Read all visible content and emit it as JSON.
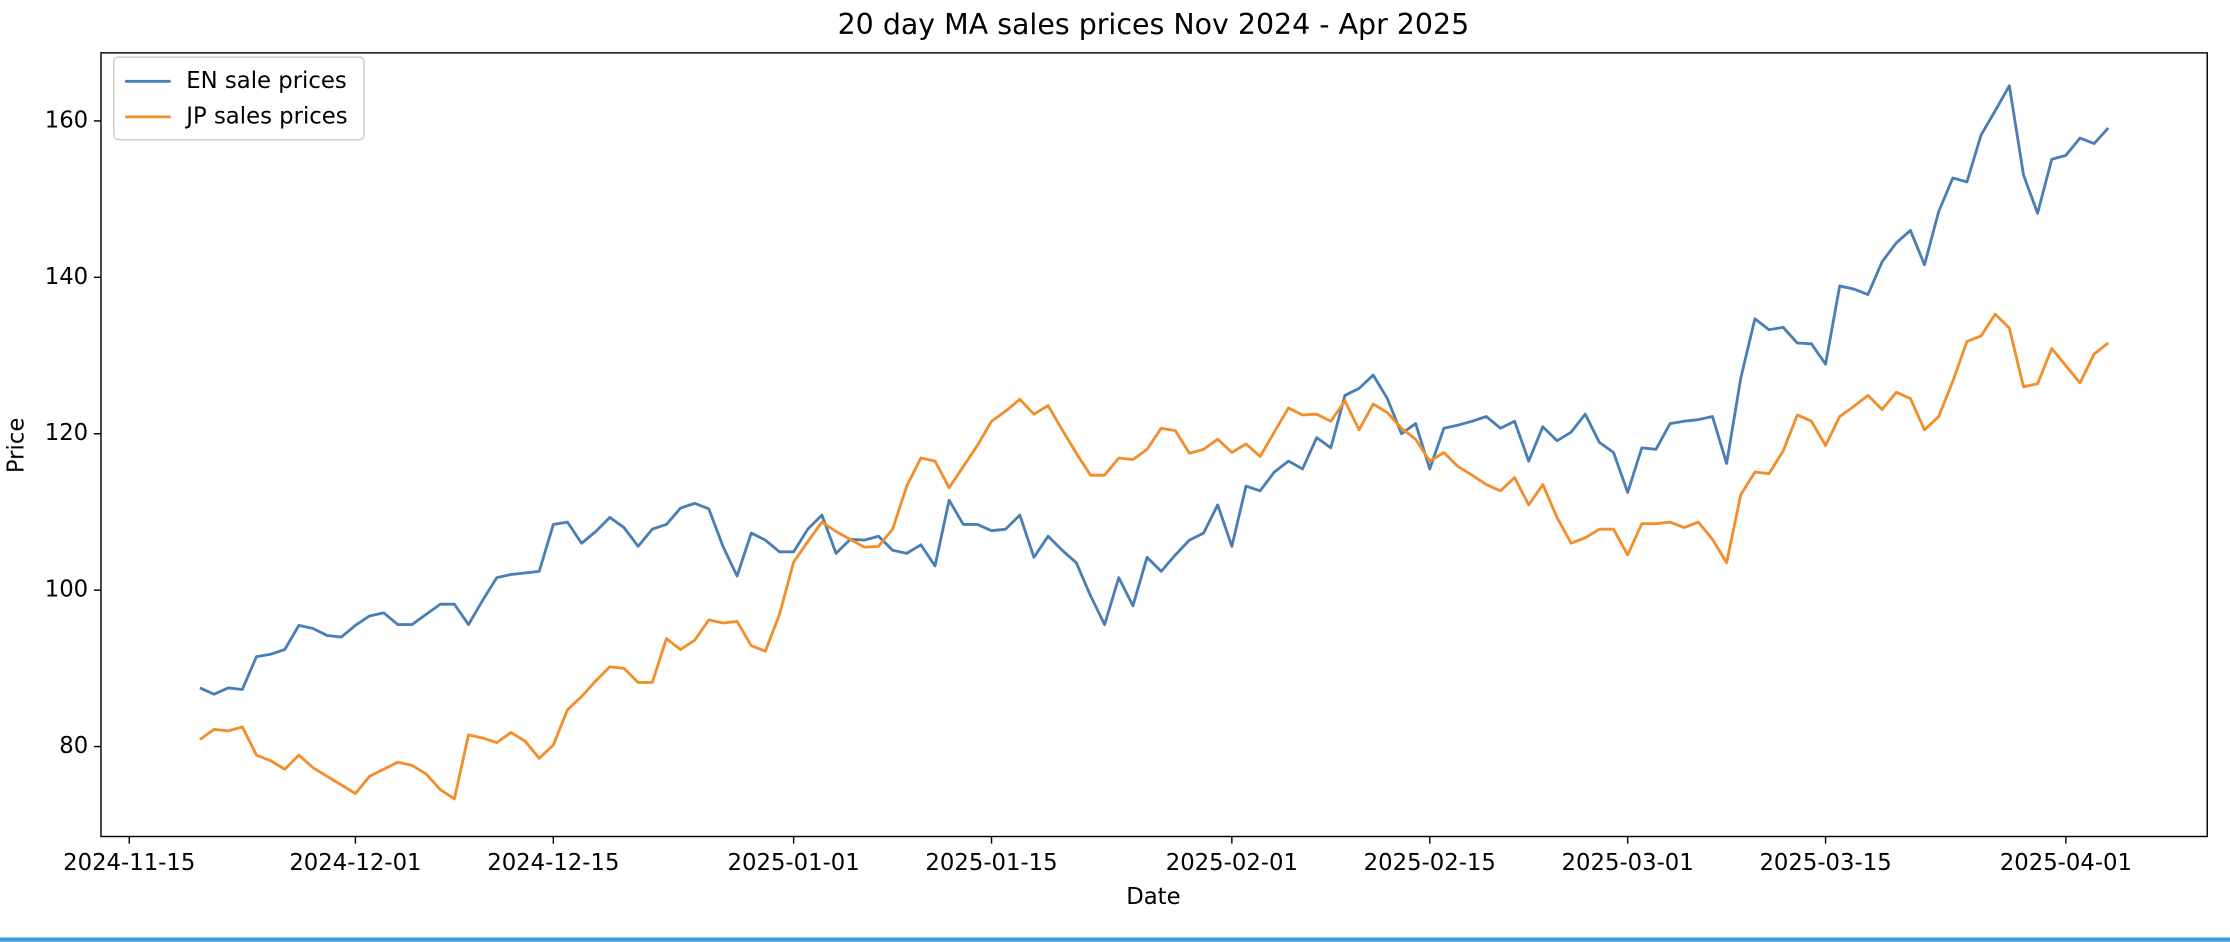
{
  "chart_data": {
    "type": "line",
    "title": "20 day MA sales prices Nov 2024 - Apr 2025",
    "xlabel": "Date",
    "ylabel": "Price",
    "x": [
      "2024-11-20",
      "2024-11-21",
      "2024-11-22",
      "2024-11-23",
      "2024-11-24",
      "2024-11-25",
      "2024-11-26",
      "2024-11-27",
      "2024-11-28",
      "2024-11-29",
      "2024-11-30",
      "2024-12-01",
      "2024-12-02",
      "2024-12-03",
      "2024-12-04",
      "2024-12-05",
      "2024-12-06",
      "2024-12-07",
      "2024-12-08",
      "2024-12-09",
      "2024-12-10",
      "2024-12-11",
      "2024-12-12",
      "2024-12-13",
      "2024-12-14",
      "2024-12-15",
      "2024-12-16",
      "2024-12-17",
      "2024-12-18",
      "2024-12-19",
      "2024-12-20",
      "2024-12-21",
      "2024-12-22",
      "2024-12-23",
      "2024-12-24",
      "2024-12-25",
      "2024-12-26",
      "2024-12-27",
      "2024-12-28",
      "2024-12-29",
      "2024-12-30",
      "2024-12-31",
      "2025-01-01",
      "2025-01-02",
      "2025-01-03",
      "2025-01-04",
      "2025-01-05",
      "2025-01-06",
      "2025-01-07",
      "2025-01-08",
      "2025-01-09",
      "2025-01-10",
      "2025-01-11",
      "2025-01-12",
      "2025-01-13",
      "2025-01-14",
      "2025-01-15",
      "2025-01-16",
      "2025-01-17",
      "2025-01-18",
      "2025-01-19",
      "2025-01-20",
      "2025-01-21",
      "2025-01-22",
      "2025-01-23",
      "2025-01-24",
      "2025-01-25",
      "2025-01-26",
      "2025-01-27",
      "2025-01-28",
      "2025-01-29",
      "2025-01-30",
      "2025-01-31",
      "2025-02-01",
      "2025-02-02",
      "2025-02-03",
      "2025-02-04",
      "2025-02-05",
      "2025-02-06",
      "2025-02-07",
      "2025-02-08",
      "2025-02-09",
      "2025-02-10",
      "2025-02-11",
      "2025-02-12",
      "2025-02-13",
      "2025-02-14",
      "2025-02-15",
      "2025-02-16",
      "2025-02-17",
      "2025-02-18",
      "2025-02-19",
      "2025-02-20",
      "2025-02-21",
      "2025-02-22",
      "2025-02-23",
      "2025-02-24",
      "2025-02-25",
      "2025-02-26",
      "2025-02-27",
      "2025-02-28",
      "2025-03-01",
      "2025-03-02",
      "2025-03-03",
      "2025-03-04",
      "2025-03-05",
      "2025-03-06",
      "2025-03-07",
      "2025-03-08",
      "2025-03-09",
      "2025-03-10",
      "2025-03-11",
      "2025-03-12",
      "2025-03-13",
      "2025-03-14",
      "2025-03-15",
      "2025-03-16",
      "2025-03-17",
      "2025-03-18",
      "2025-03-19",
      "2025-03-20",
      "2025-03-21",
      "2025-03-22",
      "2025-03-23",
      "2025-03-24",
      "2025-03-25",
      "2025-03-26",
      "2025-03-27",
      "2025-03-28",
      "2025-03-29",
      "2025-03-30",
      "2025-03-31",
      "2025-04-01",
      "2025-04-02",
      "2025-04-03",
      "2025-04-04"
    ],
    "series": [
      {
        "name": "EN sale prices",
        "color": "#4a7fb5",
        "values": [
          87.5,
          86.7,
          87.5,
          87.3,
          91.5,
          91.8,
          92.4,
          95.5,
          95.1,
          94.2,
          94.0,
          95.5,
          96.7,
          97.1,
          95.6,
          95.6,
          96.9,
          98.2,
          98.2,
          95.6,
          98.7,
          101.6,
          102.0,
          102.2,
          102.4,
          108.4,
          108.7,
          106.0,
          107.5,
          109.3,
          108.0,
          105.6,
          107.8,
          108.4,
          110.5,
          111.1,
          110.4,
          105.6,
          101.8,
          107.3,
          106.4,
          104.9,
          104.9,
          107.8,
          109.6,
          104.7,
          106.5,
          106.4,
          106.9,
          105.1,
          104.7,
          105.8,
          103.1,
          111.5,
          108.4,
          108.4,
          107.6,
          107.8,
          109.6,
          104.2,
          106.9,
          105.1,
          103.5,
          99.3,
          95.6,
          101.6,
          98.0,
          104.2,
          102.4,
          104.5,
          106.4,
          107.3,
          110.9,
          105.6,
          113.3,
          112.7,
          115.1,
          116.5,
          115.5,
          119.5,
          118.2,
          124.9,
          125.8,
          127.5,
          124.5,
          120.0,
          121.3,
          115.5,
          120.7,
          121.1,
          121.6,
          122.2,
          120.7,
          121.6,
          116.5,
          120.9,
          119.1,
          120.2,
          122.5,
          118.9,
          117.6,
          112.5,
          118.2,
          118.0,
          121.3,
          121.6,
          121.8,
          122.2,
          116.2,
          127.1,
          134.7,
          133.3,
          133.6,
          131.6,
          131.5,
          128.9,
          138.9,
          138.5,
          137.8,
          142.0,
          144.4,
          146.0,
          141.6,
          148.4,
          152.7,
          152.2,
          158.2,
          161.3,
          164.5,
          153.1,
          148.2,
          155.1,
          155.6,
          157.8,
          157.1,
          159.1
        ]
      },
      {
        "name": "JP sales prices",
        "color": "#f28e2b",
        "values": [
          80.9,
          82.2,
          82.0,
          82.5,
          78.9,
          78.2,
          77.1,
          78.9,
          77.3,
          76.2,
          75.1,
          74.0,
          76.2,
          77.1,
          78.0,
          77.6,
          76.5,
          74.5,
          73.3,
          81.5,
          81.1,
          80.5,
          81.8,
          80.7,
          78.5,
          80.2,
          84.7,
          86.4,
          88.4,
          90.2,
          90.0,
          88.2,
          88.2,
          93.8,
          92.4,
          93.6,
          96.2,
          95.8,
          96.0,
          92.9,
          92.2,
          96.9,
          103.6,
          106.2,
          108.7,
          107.5,
          106.5,
          105.5,
          105.6,
          107.8,
          113.3,
          116.9,
          116.5,
          113.1,
          115.8,
          118.5,
          121.6,
          122.9,
          124.4,
          122.5,
          123.6,
          120.5,
          117.5,
          114.7,
          114.7,
          116.9,
          116.7,
          118.0,
          120.7,
          120.4,
          117.5,
          118.0,
          119.3,
          117.6,
          118.7,
          117.1,
          120.2,
          123.3,
          122.4,
          122.5,
          121.6,
          124.2,
          120.5,
          123.8,
          122.7,
          120.7,
          119.3,
          116.5,
          117.6,
          115.8,
          114.7,
          113.5,
          112.7,
          114.4,
          110.9,
          113.5,
          109.3,
          106.0,
          106.7,
          107.8,
          107.8,
          104.5,
          108.5,
          108.5,
          108.7,
          108.0,
          108.7,
          106.5,
          103.5,
          112.2,
          115.1,
          114.9,
          117.8,
          122.4,
          121.6,
          118.5,
          122.2,
          123.5,
          124.9,
          123.1,
          125.3,
          124.5,
          120.5,
          122.2,
          126.7,
          131.8,
          132.5,
          135.3,
          133.5,
          126.0,
          126.4,
          130.9,
          128.7,
          126.5,
          130.2,
          131.6
        ]
      }
    ],
    "xlim": [
      "2024-11-13",
      "2025-04-11"
    ],
    "xticks": [
      "2024-11-15",
      "2024-12-01",
      "2024-12-15",
      "2025-01-01",
      "2025-01-15",
      "2025-02-01",
      "2025-02-15",
      "2025-03-01",
      "2025-03-15",
      "2025-04-01"
    ],
    "ylim": [
      68.5,
      168.7
    ],
    "yticks": [
      80,
      100,
      120,
      140,
      160
    ],
    "legend": "upper left"
  }
}
